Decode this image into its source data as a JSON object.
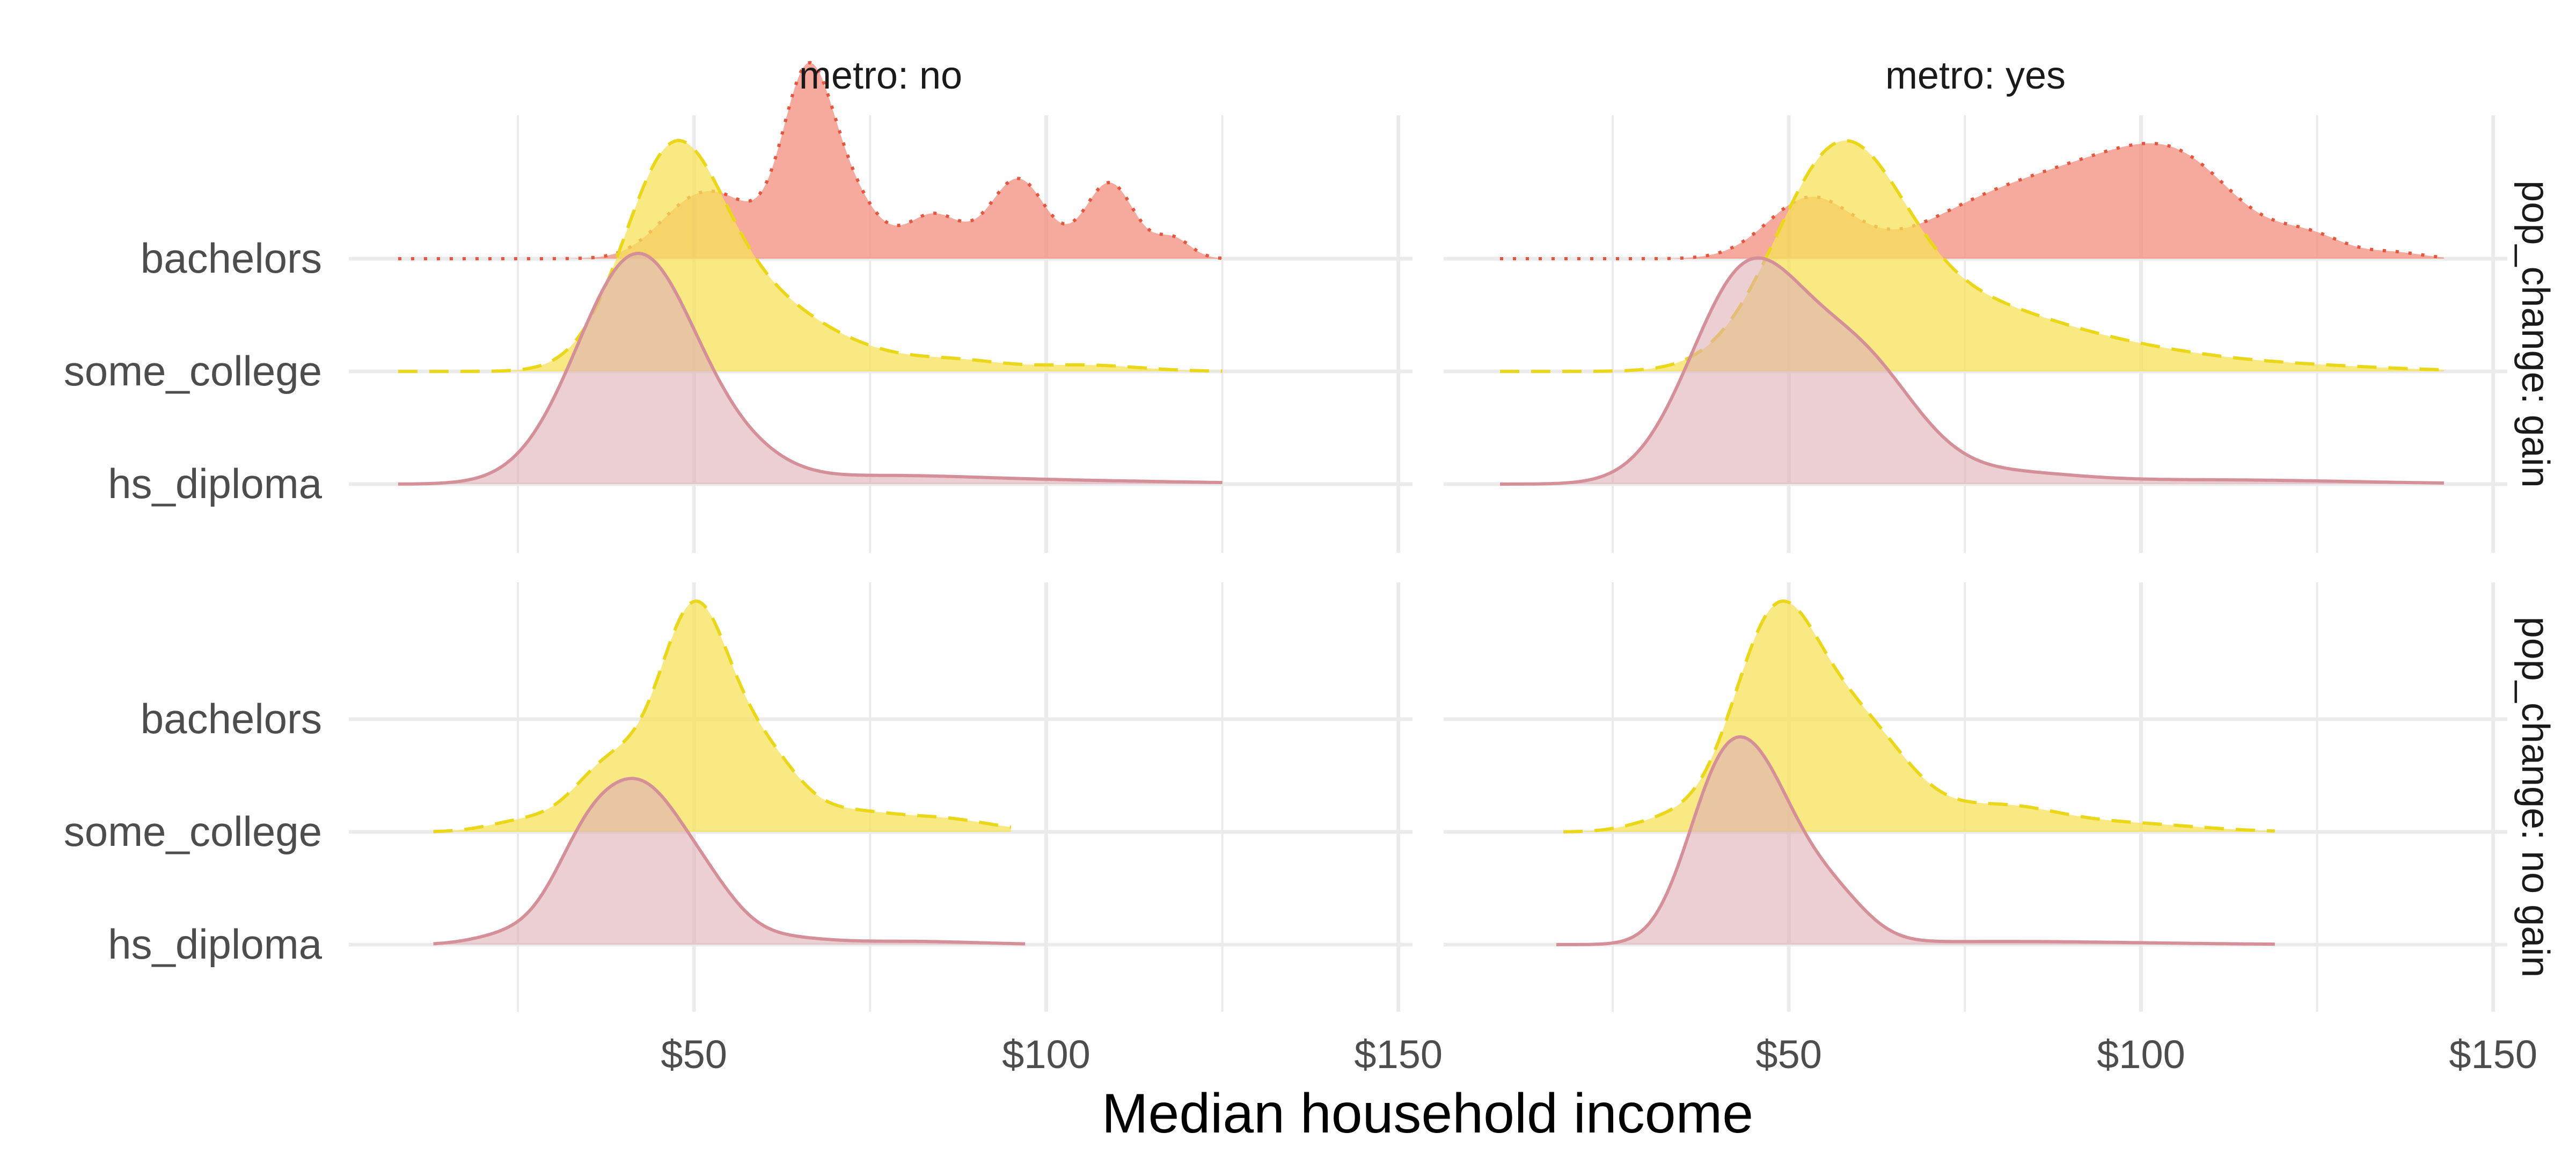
{
  "chart_data": {
    "type": "ridgeline-density",
    "xlabel": "Median household income",
    "x_tick_labels": [
      "$50",
      "$100",
      "$150"
    ],
    "x_ticks": [
      50,
      100,
      150
    ],
    "x_minor_ticks": [
      25,
      75,
      125
    ],
    "xlim": [
      1,
      152
    ],
    "y_categories": [
      "bachelors",
      "some_college",
      "hs_diploma"
    ],
    "facet_columns": [
      "metro: no",
      "metro: yes"
    ],
    "facet_rows": [
      "pop_change: gain",
      "pop_change: no gain"
    ],
    "series_styles": {
      "bachelors": {
        "fill": "#F28E7C",
        "line": "#E8553C",
        "dash": "6 18",
        "opacity": 0.75
      },
      "some_college": {
        "fill": "#F5E25A",
        "line": "#EAD718",
        "dash": "36 22",
        "opacity": 0.75
      },
      "hs_diploma": {
        "fill": "#DDAFB6",
        "line": "#D58F98",
        "dash": "",
        "opacity": 0.6
      }
    },
    "panels": [
      {
        "column": "metro: no",
        "row": "pop_change: gain",
        "series": [
          {
            "name": "bachelors",
            "x_range": [
              8,
              125
            ],
            "peaks": [
              [
                47,
                4,
                0.05
              ],
              [
                53,
                6,
                0.32
              ],
              [
                66,
                3.5,
                0.85
              ],
              [
                72,
                4,
                0.3
              ],
              [
                84,
                4,
                0.22
              ],
              [
                96,
                4,
                0.4
              ],
              [
                109,
                3.5,
                0.38
              ],
              [
                118,
                2.5,
                0.1
              ]
            ]
          },
          {
            "name": "some_college",
            "x_range": [
              8,
              125
            ],
            "peaks": [
              [
                47,
                7,
                1.0
              ],
              [
                60,
                8,
                0.28
              ],
              [
                74,
                8,
                0.07
              ],
              [
                88,
                6,
                0.04
              ],
              [
                105,
                8,
                0.03
              ]
            ]
          },
          {
            "name": "hs_diploma",
            "x_range": [
              8,
              125
            ],
            "peaks": [
              [
                42,
                8.5,
                1.0
              ],
              [
                58,
                6,
                0.06
              ],
              [
                75,
                14,
                0.03
              ],
              [
                100,
                20,
                0.015
              ]
            ]
          }
        ]
      },
      {
        "column": "metro: yes",
        "row": "pop_change: gain",
        "series": [
          {
            "name": "bachelors",
            "x_range": [
              9,
              143
            ],
            "peaks": [
              [
                53,
                6,
                0.4
              ],
              [
                78,
                10,
                0.32
              ],
              [
                95,
                10,
                0.5
              ],
              [
                107,
                8,
                0.44
              ],
              [
                124,
                5,
                0.14
              ],
              [
                136,
                4,
                0.04
              ]
            ]
          },
          {
            "name": "some_college",
            "x_range": [
              9,
              143
            ],
            "peaks": [
              [
                57,
                9,
                1.0
              ],
              [
                75,
                13,
                0.3
              ],
              [
                98,
                12,
                0.08
              ],
              [
                120,
                14,
                0.03
              ]
            ]
          },
          {
            "name": "hs_diploma",
            "x_range": [
              9,
              143
            ],
            "peaks": [
              [
                44,
                8,
                0.98
              ],
              [
                60,
                8,
                0.55
              ],
              [
                80,
                10,
                0.05
              ],
              [
                110,
                20,
                0.02
              ]
            ]
          }
        ]
      },
      {
        "column": "metro: no",
        "row": "pop_change: no gain",
        "series": [
          {
            "name": "some_college",
            "x_range": [
              13,
              95
            ],
            "peaks": [
              [
                26,
                5,
                0.05
              ],
              [
                38,
                5,
                0.3
              ],
              [
                50,
                5,
                1.0
              ],
              [
                60,
                5,
                0.32
              ],
              [
                72,
                6,
                0.08
              ],
              [
                85,
                7,
                0.06
              ]
            ]
          },
          {
            "name": "hs_diploma",
            "x_range": [
              13,
              97
            ],
            "peaks": [
              [
                24,
                5,
                0.06
              ],
              [
                35,
                5,
                0.6
              ],
              [
                43,
                5,
                0.72
              ],
              [
                51,
                5,
                0.35
              ],
              [
                62,
                6,
                0.04
              ],
              [
                80,
                10,
                0.02
              ]
            ]
          }
        ]
      },
      {
        "column": "metro: yes",
        "row": "pop_change: no gain",
        "series": [
          {
            "name": "some_college",
            "x_range": [
              18,
              119
            ],
            "peaks": [
              [
                33,
                5,
                0.06
              ],
              [
                48,
                6,
                1.0
              ],
              [
                60,
                7,
                0.5
              ],
              [
                80,
                8,
                0.12
              ],
              [
                98,
                10,
                0.04
              ]
            ]
          },
          {
            "name": "hs_diploma",
            "x_range": [
              17,
              119
            ],
            "peaks": [
              [
                40,
                5,
                0.9
              ],
              [
                47,
                5,
                0.75
              ],
              [
                56,
                5,
                0.3
              ],
              [
                80,
                20,
                0.02
              ]
            ]
          }
        ]
      }
    ]
  }
}
